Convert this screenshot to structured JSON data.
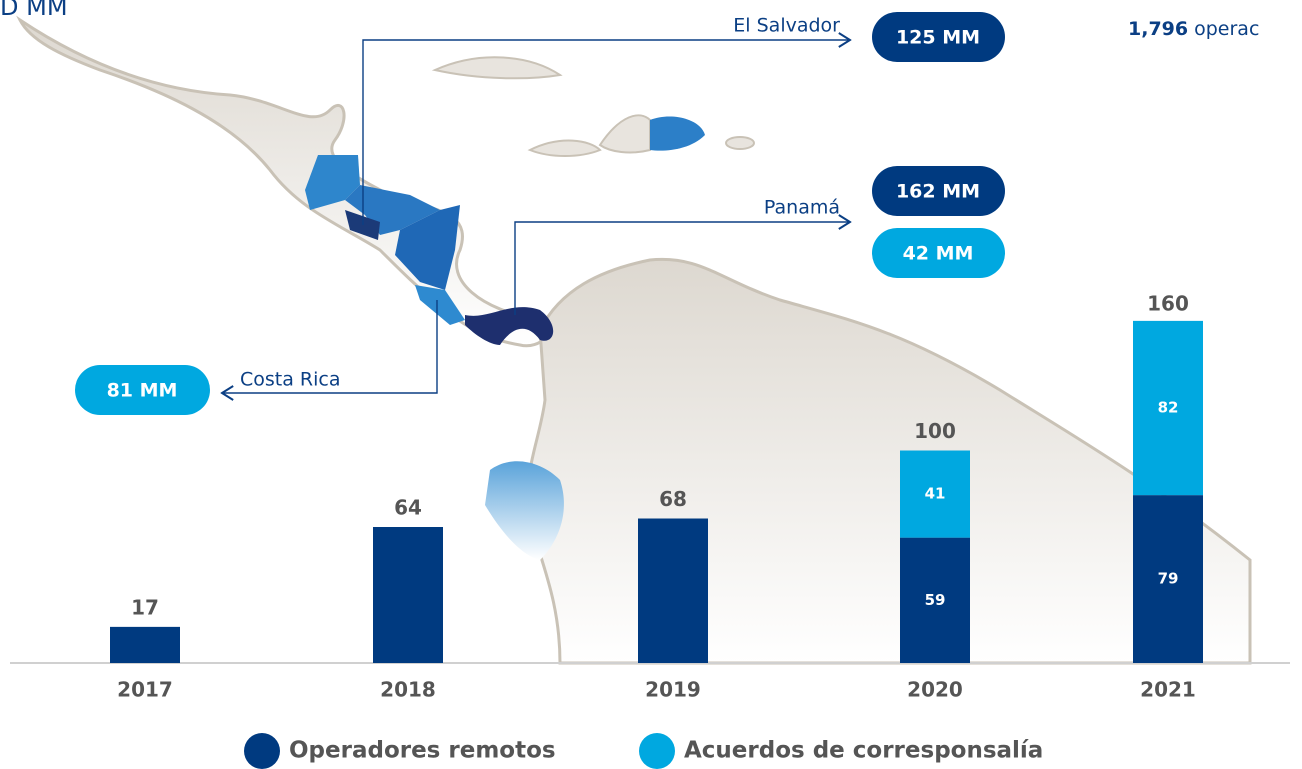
{
  "header": {
    "unit_fragment": "D MM",
    "count": "1,796",
    "count_suffix": "operac"
  },
  "callouts": [
    {
      "country": "El Salvador",
      "amounts": [
        "125 MM"
      ]
    },
    {
      "country": "Panamá",
      "amounts": [
        "162 MM",
        "42 MM"
      ]
    },
    {
      "country": "Costa Rica",
      "amounts": [
        "81 MM"
      ]
    }
  ],
  "chart_data": {
    "type": "stacked_bar",
    "categories": [
      "2017",
      "2018",
      "2019",
      "2020",
      "2021"
    ],
    "series": [
      {
        "name": "Operadores remotos",
        "color": "#003a80",
        "values": [
          17,
          64,
          68,
          59,
          79
        ]
      },
      {
        "name": "Acuerdos de corresponsalía",
        "color": "#00a8e0",
        "values": [
          null,
          null,
          null,
          41,
          82
        ]
      }
    ],
    "totals": [
      17,
      64,
      68,
      100,
      160
    ]
  }
}
